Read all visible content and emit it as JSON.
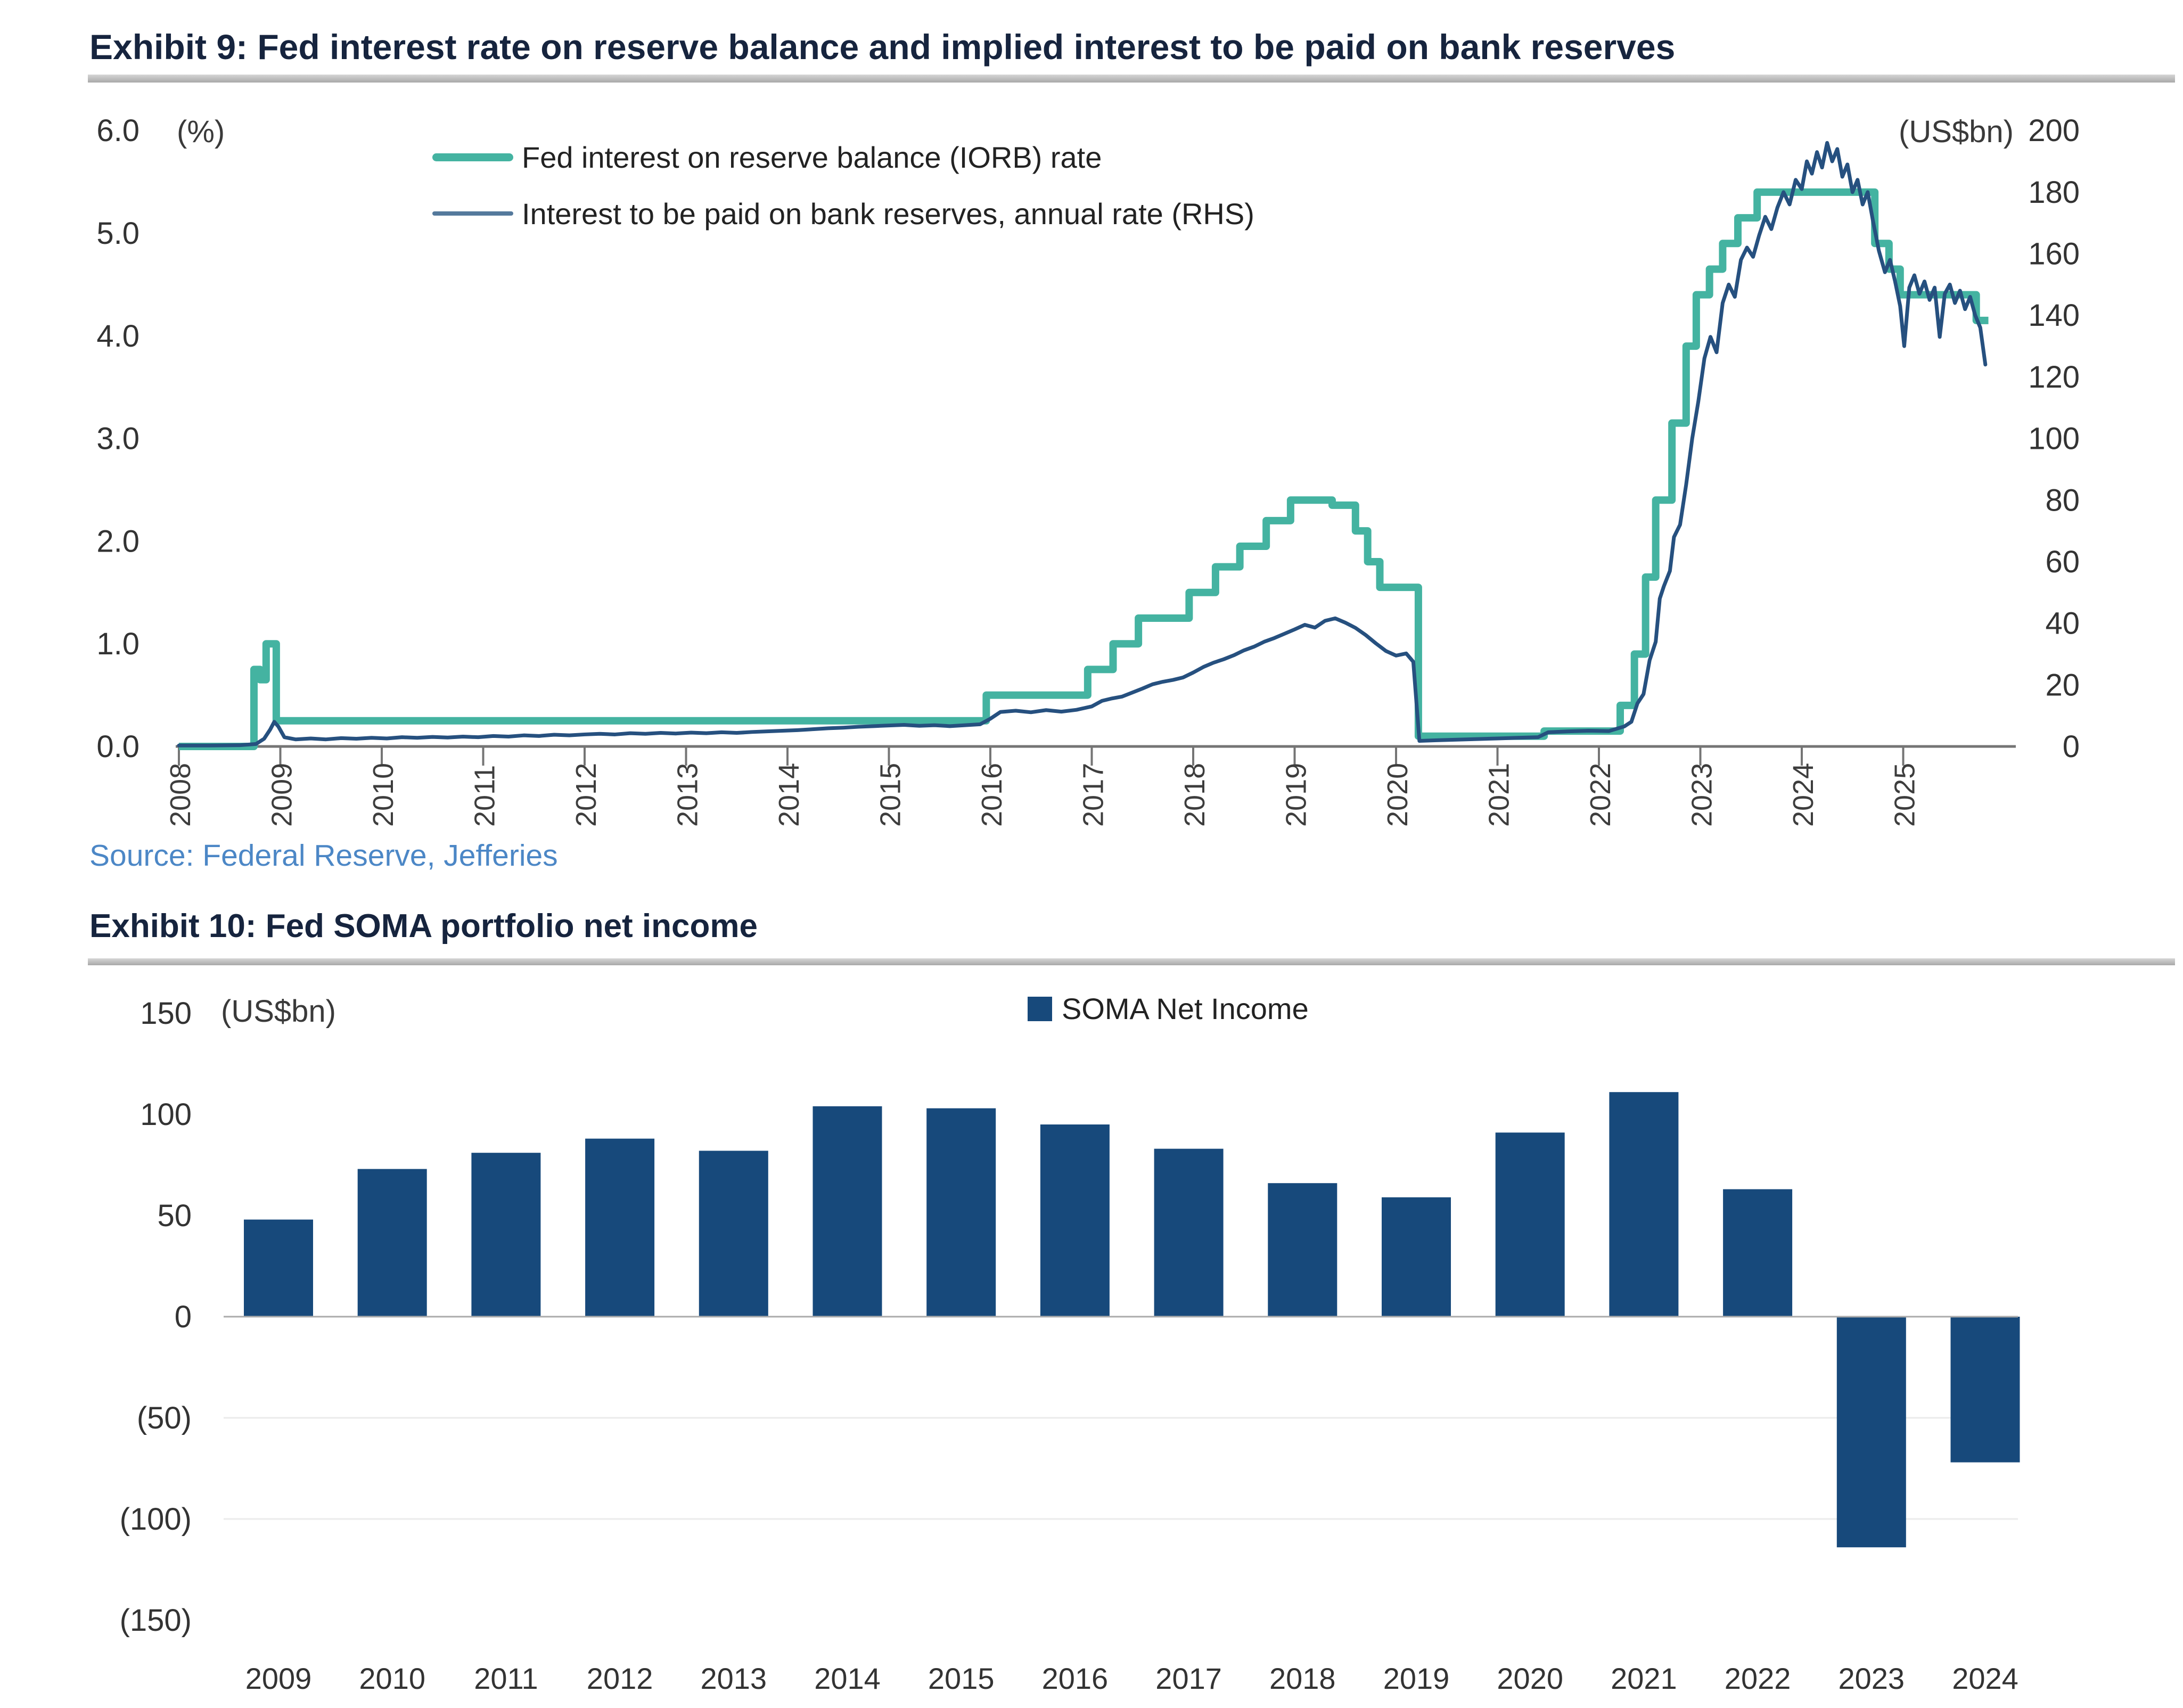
{
  "page": {
    "background": "#ffffff"
  },
  "chart_data": [
    {
      "type": "line",
      "title": "Exhibit 9: Fed interest rate on reserve balance and implied interest to be paid on bank reserves",
      "source": "Source: Federal Reserve, Jefferies",
      "left_axis_unit": "(%)",
      "right_axis_unit": "(US$bn)",
      "left_ylim": [
        0,
        6
      ],
      "right_ylim": [
        0,
        200
      ],
      "xlim": [
        2008,
        2025.84
      ],
      "grid": false,
      "legend_position": "upper-left-inside",
      "left_tick_values": [
        6,
        5,
        4,
        3,
        2,
        1,
        0
      ],
      "left_tick_labels": [
        "6.0",
        "5.0",
        "4.0",
        "3.0",
        "2.0",
        "1.0",
        "0.0"
      ],
      "right_tick_values": [
        200,
        180,
        160,
        140,
        120,
        100,
        80,
        60,
        40,
        20,
        0
      ],
      "right_tick_labels": [
        "200",
        "180",
        "160",
        "140",
        "120",
        "100",
        "80",
        "60",
        "40",
        "20",
        "0"
      ],
      "x_tick_years": [
        2008,
        2009,
        2010,
        2011,
        2012,
        2013,
        2014,
        2015,
        2016,
        2017,
        2018,
        2019,
        2020,
        2021,
        2022,
        2023,
        2024,
        2025
      ],
      "x_tick_labels": [
        "2008",
        "2009",
        "2010",
        "2011",
        "2012",
        "2013",
        "2014",
        "2015",
        "2016",
        "2017",
        "2018",
        "2019",
        "2020",
        "2021",
        "2022",
        "2023",
        "2024",
        "2025"
      ],
      "series": [
        {
          "name": "Fed interest on reserve balance (IORB) rate",
          "axis": "left",
          "color": "#44b3a1",
          "line_width": 14,
          "interpolation": "step-after",
          "points": [
            [
              2008.0,
              0.0
            ],
            [
              2008.74,
              0.75
            ],
            [
              2008.8,
              0.65
            ],
            [
              2008.86,
              1.0
            ],
            [
              2008.96,
              0.25
            ],
            [
              2015.96,
              0.5
            ],
            [
              2016.96,
              0.75
            ],
            [
              2017.21,
              1.0
            ],
            [
              2017.46,
              1.25
            ],
            [
              2017.96,
              1.5
            ],
            [
              2018.22,
              1.75
            ],
            [
              2018.46,
              1.95
            ],
            [
              2018.72,
              2.2
            ],
            [
              2018.96,
              2.4
            ],
            [
              2019.37,
              2.35
            ],
            [
              2019.6,
              2.1
            ],
            [
              2019.72,
              1.8
            ],
            [
              2019.84,
              1.55
            ],
            [
              2020.22,
              0.1
            ],
            [
              2021.46,
              0.15
            ],
            [
              2022.21,
              0.4
            ],
            [
              2022.35,
              0.9
            ],
            [
              2022.46,
              1.65
            ],
            [
              2022.56,
              2.4
            ],
            [
              2022.72,
              3.15
            ],
            [
              2022.86,
              3.9
            ],
            [
              2022.96,
              4.4
            ],
            [
              2023.09,
              4.65
            ],
            [
              2023.22,
              4.9
            ],
            [
              2023.37,
              5.15
            ],
            [
              2023.56,
              5.4
            ],
            [
              2024.72,
              4.9
            ],
            [
              2024.86,
              4.65
            ],
            [
              2024.97,
              4.4
            ],
            [
              2025.72,
              4.15
            ],
            [
              2025.84,
              4.15
            ]
          ]
        },
        {
          "name": "Interest to be paid on bank reserves, annual rate (RHS)",
          "axis": "right",
          "color": "#26507f",
          "line_width": 7,
          "interpolation": "linear",
          "points": [
            [
              2008.0,
              0.3
            ],
            [
              2008.3,
              0.3
            ],
            [
              2008.6,
              0.4
            ],
            [
              2008.76,
              0.8
            ],
            [
              2008.84,
              2.5
            ],
            [
              2008.9,
              5.5
            ],
            [
              2008.94,
              8
            ],
            [
              2008.98,
              6.5
            ],
            [
              2009.04,
              3
            ],
            [
              2009.15,
              2.3
            ],
            [
              2009.3,
              2.6
            ],
            [
              2009.45,
              2.3
            ],
            [
              2009.6,
              2.7
            ],
            [
              2009.75,
              2.5
            ],
            [
              2009.9,
              2.8
            ],
            [
              2010.05,
              2.6
            ],
            [
              2010.2,
              3
            ],
            [
              2010.35,
              2.8
            ],
            [
              2010.5,
              3.1
            ],
            [
              2010.65,
              2.9
            ],
            [
              2010.8,
              3.2
            ],
            [
              2010.95,
              3
            ],
            [
              2011.1,
              3.4
            ],
            [
              2011.25,
              3.2
            ],
            [
              2011.4,
              3.6
            ],
            [
              2011.55,
              3.4
            ],
            [
              2011.7,
              3.8
            ],
            [
              2011.85,
              3.6
            ],
            [
              2012.0,
              3.9
            ],
            [
              2012.15,
              4.1
            ],
            [
              2012.3,
              3.9
            ],
            [
              2012.45,
              4.3
            ],
            [
              2012.6,
              4.1
            ],
            [
              2012.75,
              4.4
            ],
            [
              2012.9,
              4.2
            ],
            [
              2013.05,
              4.5
            ],
            [
              2013.2,
              4.3
            ],
            [
              2013.35,
              4.6
            ],
            [
              2013.5,
              4.4
            ],
            [
              2013.65,
              4.7
            ],
            [
              2013.8,
              4.9
            ],
            [
              2013.95,
              5.1
            ],
            [
              2014.1,
              5.3
            ],
            [
              2014.25,
              5.6
            ],
            [
              2014.4,
              5.9
            ],
            [
              2014.55,
              6.1
            ],
            [
              2014.7,
              6.4
            ],
            [
              2014.85,
              6.6
            ],
            [
              2015.0,
              6.8
            ],
            [
              2015.15,
              7
            ],
            [
              2015.3,
              6.7
            ],
            [
              2015.45,
              6.9
            ],
            [
              2015.6,
              6.6
            ],
            [
              2015.75,
              6.9
            ],
            [
              2015.9,
              7.2
            ],
            [
              2016.0,
              9
            ],
            [
              2016.1,
              11.2
            ],
            [
              2016.25,
              11.6
            ],
            [
              2016.4,
              11.1
            ],
            [
              2016.55,
              11.8
            ],
            [
              2016.7,
              11.3
            ],
            [
              2016.85,
              11.9
            ],
            [
              2017.0,
              13
            ],
            [
              2017.1,
              14.8
            ],
            [
              2017.2,
              15.6
            ],
            [
              2017.3,
              16.2
            ],
            [
              2017.4,
              17.5
            ],
            [
              2017.5,
              18.8
            ],
            [
              2017.6,
              20.2
            ],
            [
              2017.7,
              21
            ],
            [
              2017.8,
              21.6
            ],
            [
              2017.9,
              22.4
            ],
            [
              2018.0,
              24
            ],
            [
              2018.1,
              25.8
            ],
            [
              2018.2,
              27.2
            ],
            [
              2018.3,
              28.3
            ],
            [
              2018.4,
              29.6
            ],
            [
              2018.5,
              31.2
            ],
            [
              2018.6,
              32.4
            ],
            [
              2018.7,
              34
            ],
            [
              2018.8,
              35.2
            ],
            [
              2018.9,
              36.6
            ],
            [
              2019.0,
              38
            ],
            [
              2019.1,
              39.5
            ],
            [
              2019.2,
              38.6
            ],
            [
              2019.3,
              40.8
            ],
            [
              2019.4,
              41.6
            ],
            [
              2019.5,
              40.2
            ],
            [
              2019.6,
              38.5
            ],
            [
              2019.7,
              36.2
            ],
            [
              2019.8,
              33.5
            ],
            [
              2019.9,
              31
            ],
            [
              2020.0,
              29.5
            ],
            [
              2020.1,
              30.2
            ],
            [
              2020.17,
              27.5
            ],
            [
              2020.23,
              1.8
            ],
            [
              2020.4,
              2
            ],
            [
              2020.6,
              2.2
            ],
            [
              2020.8,
              2.4
            ],
            [
              2021.0,
              2.6
            ],
            [
              2021.2,
              2.8
            ],
            [
              2021.4,
              3
            ],
            [
              2021.5,
              4.6
            ],
            [
              2021.7,
              4.9
            ],
            [
              2021.9,
              5.1
            ],
            [
              2022.1,
              5
            ],
            [
              2022.25,
              6.5
            ],
            [
              2022.32,
              8
            ],
            [
              2022.38,
              14
            ],
            [
              2022.44,
              17
            ],
            [
              2022.5,
              28
            ],
            [
              2022.56,
              34
            ],
            [
              2022.6,
              48
            ],
            [
              2022.64,
              52
            ],
            [
              2022.7,
              57
            ],
            [
              2022.74,
              68
            ],
            [
              2022.8,
              72
            ],
            [
              2022.86,
              85
            ],
            [
              2022.92,
              100
            ],
            [
              2022.98,
              112
            ],
            [
              2023.04,
              126
            ],
            [
              2023.1,
              133
            ],
            [
              2023.16,
              128
            ],
            [
              2023.22,
              144
            ],
            [
              2023.28,
              150
            ],
            [
              2023.34,
              146
            ],
            [
              2023.4,
              158
            ],
            [
              2023.46,
              162
            ],
            [
              2023.52,
              159
            ],
            [
              2023.58,
              166
            ],
            [
              2023.64,
              172
            ],
            [
              2023.7,
              168
            ],
            [
              2023.76,
              175
            ],
            [
              2023.82,
              180
            ],
            [
              2023.88,
              176
            ],
            [
              2023.94,
              184
            ],
            [
              2024.0,
              181
            ],
            [
              2024.05,
              190
            ],
            [
              2024.1,
              186
            ],
            [
              2024.15,
              193
            ],
            [
              2024.2,
              188
            ],
            [
              2024.25,
              196
            ],
            [
              2024.3,
              190
            ],
            [
              2024.35,
              194
            ],
            [
              2024.4,
              185
            ],
            [
              2024.45,
              189
            ],
            [
              2024.5,
              180
            ],
            [
              2024.55,
              184
            ],
            [
              2024.6,
              176
            ],
            [
              2024.65,
              180
            ],
            [
              2024.7,
              171
            ],
            [
              2024.76,
              161
            ],
            [
              2024.82,
              154
            ],
            [
              2024.87,
              158
            ],
            [
              2024.92,
              151
            ],
            [
              2024.97,
              143
            ],
            [
              2025.01,
              130
            ],
            [
              2025.06,
              149
            ],
            [
              2025.11,
              153
            ],
            [
              2025.16,
              147
            ],
            [
              2025.21,
              151
            ],
            [
              2025.26,
              145
            ],
            [
              2025.31,
              149
            ],
            [
              2025.36,
              133
            ],
            [
              2025.41,
              147
            ],
            [
              2025.46,
              150
            ],
            [
              2025.51,
              144
            ],
            [
              2025.56,
              148
            ],
            [
              2025.61,
              142
            ],
            [
              2025.66,
              146
            ],
            [
              2025.71,
              140
            ],
            [
              2025.76,
              136
            ],
            [
              2025.81,
              124
            ]
          ]
        }
      ]
    },
    {
      "type": "bar",
      "title": "Exhibit 10: Fed SOMA portfolio net income",
      "ylabel": "(US$bn)",
      "legend": "SOMA Net Income",
      "bar_color": "#17497b",
      "ylim": [
        -150,
        150
      ],
      "y_tick_values": [
        150,
        100,
        50,
        0,
        -50,
        -100,
        -150
      ],
      "y_tick_labels": [
        "150",
        "100",
        "50",
        "0",
        "(50)",
        "(100)",
        "(150)"
      ],
      "gridlines_at": [
        -50,
        -100
      ],
      "legend_position": "top-center",
      "categories": [
        "2009",
        "2010",
        "2011",
        "2012",
        "2013",
        "2014",
        "2015",
        "2016",
        "2017",
        "2018",
        "2019",
        "2020",
        "2021",
        "2022",
        "2023",
        "2024"
      ],
      "values": [
        48,
        73,
        81,
        88,
        82,
        104,
        103,
        95,
        83,
        66,
        59,
        91,
        111,
        63,
        -114,
        -72
      ]
    }
  ]
}
